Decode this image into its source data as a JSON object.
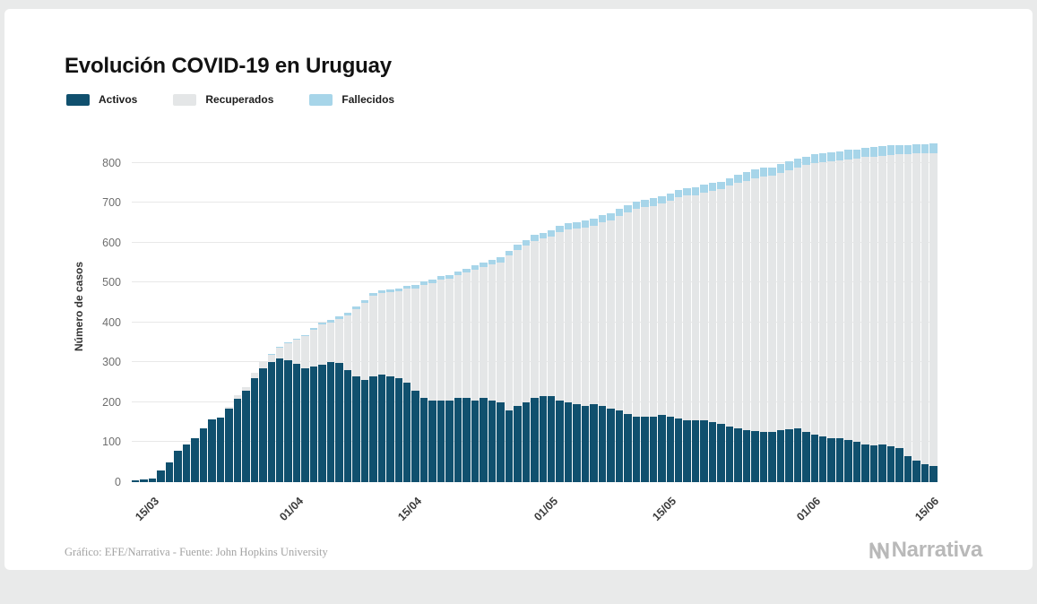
{
  "footer": {
    "credit": "Gráfico: EFE/Narrativa - Fuente: John Hopkins University",
    "brand": "Narrativa"
  },
  "chart_data": {
    "type": "bar",
    "stacked": true,
    "title": "Evolución COVID-19 en Uruguay",
    "ylabel": "Número de casos",
    "ylim": [
      0,
      880
    ],
    "yticks": [
      0,
      100,
      200,
      300,
      400,
      500,
      600,
      700,
      800
    ],
    "grid": true,
    "legend_position": "top-left",
    "xtick_labels": [
      "15/03",
      "01/04",
      "15/04",
      "01/05",
      "15/05",
      "01/06",
      "15/06"
    ],
    "xtick_indices": [
      2,
      19,
      33,
      49,
      63,
      80,
      94
    ],
    "dates": [
      "13/03",
      "14/03",
      "15/03",
      "16/03",
      "17/03",
      "18/03",
      "19/03",
      "20/03",
      "21/03",
      "22/03",
      "23/03",
      "24/03",
      "25/03",
      "26/03",
      "27/03",
      "28/03",
      "29/03",
      "30/03",
      "31/03",
      "01/04",
      "02/04",
      "03/04",
      "04/04",
      "05/04",
      "06/04",
      "07/04",
      "08/04",
      "09/04",
      "10/04",
      "11/04",
      "12/04",
      "13/04",
      "14/04",
      "15/04",
      "16/04",
      "17/04",
      "18/04",
      "19/04",
      "20/04",
      "21/04",
      "22/04",
      "23/04",
      "24/04",
      "25/04",
      "26/04",
      "27/04",
      "28/04",
      "29/04",
      "30/04",
      "01/05",
      "02/05",
      "03/05",
      "04/05",
      "05/05",
      "06/05",
      "07/05",
      "08/05",
      "09/05",
      "10/05",
      "11/05",
      "12/05",
      "13/05",
      "14/05",
      "15/05",
      "16/05",
      "17/05",
      "18/05",
      "19/05",
      "20/05",
      "21/05",
      "22/05",
      "23/05",
      "24/05",
      "25/05",
      "26/05",
      "27/05",
      "28/05",
      "29/05",
      "30/05",
      "31/05",
      "01/06",
      "02/06",
      "03/06",
      "04/06",
      "05/06",
      "06/06",
      "07/06",
      "08/06",
      "09/06",
      "10/06",
      "11/06",
      "12/06",
      "13/06",
      "14/06",
      "15/06"
    ],
    "series": [
      {
        "name": "Activos",
        "color": "#10506e",
        "values": [
          4,
          6,
          8,
          29,
          50,
          79,
          94,
          110,
          135,
          158,
          162,
          185,
          208,
          228,
          260,
          285,
          300,
          310,
          306,
          296,
          285,
          290,
          295,
          300,
          298,
          280,
          265,
          255,
          266,
          270,
          265,
          260,
          250,
          230,
          210,
          205,
          205,
          205,
          210,
          210,
          205,
          210,
          205,
          200,
          180,
          190,
          200,
          212,
          216,
          215,
          205,
          200,
          195,
          190,
          195,
          190,
          185,
          180,
          170,
          165,
          165,
          165,
          168,
          165,
          160,
          155,
          155,
          155,
          150,
          145,
          140,
          135,
          130,
          128,
          125,
          125,
          130,
          132,
          135,
          125,
          120,
          115,
          110,
          110,
          105,
          100,
          95,
          92,
          94,
          90,
          85,
          65,
          55,
          45,
          40
        ]
      },
      {
        "name": "Recuperados",
        "color": "#e4e6e7",
        "values": [
          0,
          0,
          0,
          0,
          0,
          0,
          0,
          0,
          0,
          0,
          0,
          4,
          9,
          10,
          14,
          18,
          19,
          27,
          43,
          60,
          80,
          91,
          100,
          100,
          111,
          137,
          169,
          194,
          200,
          203,
          211,
          218,
          234,
          254,
          283,
          293,
          302,
          304,
          308,
          315,
          327,
          328,
          340,
          351,
          387,
          392,
          392,
          393,
          394,
          400,
          422,
          432,
          441,
          448,
          448,
          461,
          471,
          486,
          506,
          519,
          524,
          527,
          530,
          540,
          553,
          563,
          563,
          571,
          579,
          588,
          602,
          614,
          625,
          634,
          641,
          643,
          644,
          649,
          654,
          669,
          679,
          686,
          693,
          695,
          704,
          711,
          719,
          724,
          724,
          730,
          737,
          757,
          768,
          779,
          785
        ]
      },
      {
        "name": "Fallecidos",
        "color": "#a7d5e9",
        "values": [
          0,
          0,
          0,
          0,
          0,
          0,
          0,
          0,
          0,
          0,
          0,
          0,
          0,
          0,
          0,
          1,
          1,
          1,
          1,
          4,
          4,
          5,
          5,
          6,
          6,
          7,
          7,
          7,
          7,
          7,
          7,
          8,
          8,
          9,
          9,
          10,
          10,
          10,
          10,
          10,
          11,
          11,
          12,
          12,
          13,
          14,
          14,
          15,
          15,
          15,
          16,
          16,
          16,
          17,
          17,
          17,
          17,
          18,
          18,
          18,
          18,
          19,
          19,
          19,
          19,
          19,
          20,
          20,
          20,
          20,
          20,
          20,
          21,
          21,
          21,
          21,
          22,
          22,
          22,
          22,
          22,
          22,
          23,
          23,
          23,
          23,
          23,
          23,
          23,
          23,
          23,
          23,
          23,
          23,
          23
        ]
      }
    ]
  }
}
